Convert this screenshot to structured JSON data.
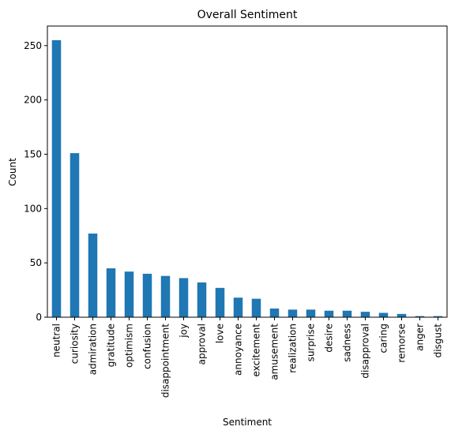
{
  "chart_data": {
    "type": "bar",
    "title": "Overall Sentiment",
    "xlabel": "Sentiment",
    "ylabel": "Count",
    "ylim": [
      0,
      268
    ],
    "yticks": [
      0,
      50,
      100,
      150,
      200,
      250
    ],
    "grid": false,
    "bar_color": "#1f77b4",
    "categories": [
      "neutral",
      "curiosity",
      "admiration",
      "gratitude",
      "optimism",
      "confusion",
      "disappointment",
      "joy",
      "approval",
      "love",
      "annoyance",
      "excitement",
      "amusement",
      "realization",
      "surprise",
      "desire",
      "sadness",
      "disapproval",
      "caring",
      "remorse",
      "anger",
      "disgust"
    ],
    "values": [
      255,
      151,
      77,
      45,
      42,
      40,
      38,
      36,
      32,
      27,
      18,
      17,
      8,
      7,
      7,
      6,
      6,
      5,
      4,
      3,
      1,
      1
    ]
  }
}
